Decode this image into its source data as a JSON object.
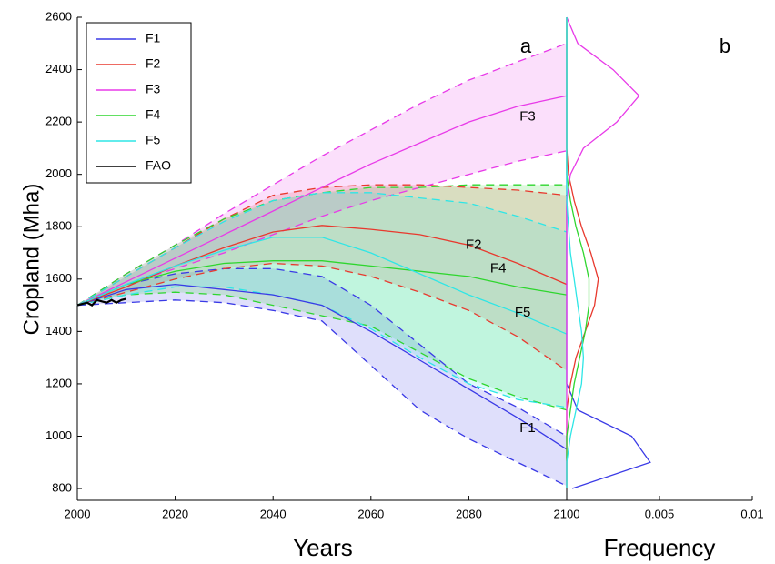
{
  "chart_data": {
    "type": "line",
    "x_label": "Years",
    "y_label": "Cropland (Mha)",
    "panels": [
      "a",
      "b"
    ],
    "x": [
      2000,
      2010,
      2020,
      2030,
      2040,
      2050,
      2060,
      2070,
      2080,
      2090,
      2100
    ],
    "xlim": [
      2000,
      2100
    ],
    "xticks": [
      2000,
      2020,
      2040,
      2060,
      2080,
      2100
    ],
    "ylim": [
      755,
      2600
    ],
    "yticks": [
      800,
      1000,
      1200,
      1400,
      1600,
      1800,
      2000,
      2200,
      2400,
      2600
    ],
    "series": [
      {
        "name": "F1",
        "color": "#3a3ae6",
        "values": [
          1500,
          1560,
          1580,
          1560,
          1540,
          1500,
          1400,
          1290,
          1180,
          1070,
          950
        ],
        "upper": [
          1500,
          1580,
          1620,
          1640,
          1640,
          1610,
          1500,
          1350,
          1200,
          1110,
          1000
        ],
        "lower": [
          1500,
          1510,
          1520,
          1510,
          1480,
          1440,
          1270,
          1100,
          990,
          900,
          810
        ],
        "density": [
          0.0003,
          0.0045,
          0.0035,
          0.0006,
          0,
          0,
          0,
          0,
          0,
          0,
          0,
          0,
          0,
          0,
          0,
          0,
          0,
          0,
          0
        ]
      },
      {
        "name": "F2",
        "color": "#e8392e",
        "values": [
          1500,
          1570,
          1650,
          1720,
          1780,
          1805,
          1790,
          1770,
          1730,
          1660,
          1580
        ],
        "upper": [
          1500,
          1610,
          1720,
          1830,
          1920,
          1950,
          1960,
          1960,
          1950,
          1940,
          1920
        ],
        "lower": [
          1500,
          1550,
          1600,
          1640,
          1660,
          1650,
          1610,
          1550,
          1480,
          1380,
          1250
        ],
        "density": [
          0,
          0,
          0,
          0,
          0.0002,
          0.0005,
          0.001,
          0.0015,
          0.0017,
          0.0013,
          0.0008,
          0.0004,
          0.0001,
          0,
          0,
          0,
          0,
          0,
          0
        ]
      },
      {
        "name": "F3",
        "color": "#e83ae8",
        "values": [
          1500,
          1590,
          1680,
          1770,
          1860,
          1950,
          2040,
          2120,
          2200,
          2260,
          2300
        ],
        "upper": [
          1500,
          1620,
          1730,
          1850,
          1960,
          2070,
          2170,
          2270,
          2360,
          2430,
          2500
        ],
        "lower": [
          1500,
          1580,
          1640,
          1700,
          1770,
          1840,
          1900,
          1950,
          2000,
          2050,
          2090
        ],
        "density": [
          0,
          0,
          0,
          0,
          0,
          0,
          0,
          0,
          0,
          0,
          0,
          0,
          0.0002,
          0.0009,
          0.0027,
          0.0039,
          0.0025,
          0.0006,
          0
        ]
      },
      {
        "name": "F4",
        "color": "#2ed62e",
        "values": [
          1500,
          1580,
          1630,
          1660,
          1670,
          1670,
          1650,
          1630,
          1610,
          1570,
          1540
        ],
        "upper": [
          1500,
          1620,
          1730,
          1830,
          1900,
          1930,
          1950,
          1950,
          1960,
          1960,
          1960
        ],
        "lower": [
          1500,
          1540,
          1550,
          1540,
          1500,
          1460,
          1420,
          1320,
          1220,
          1150,
          1100
        ],
        "density": [
          0,
          0,
          0,
          0.0002,
          0.0004,
          0.0007,
          0.001,
          0.0012,
          0.0012,
          0.0009,
          0.0005,
          0.0002,
          0,
          0,
          0,
          0,
          0,
          0,
          0
        ]
      },
      {
        "name": "F5",
        "color": "#2ee6e6",
        "values": [
          1500,
          1580,
          1650,
          1710,
          1760,
          1760,
          1700,
          1620,
          1540,
          1470,
          1390
        ],
        "upper": [
          1500,
          1610,
          1720,
          1820,
          1900,
          1930,
          1930,
          1910,
          1890,
          1840,
          1780
        ],
        "lower": [
          1500,
          1540,
          1570,
          1570,
          1540,
          1500,
          1410,
          1300,
          1200,
          1140,
          1110
        ],
        "density": [
          0,
          0,
          0.0002,
          0.0005,
          0.0008,
          0.0009,
          0.0008,
          0.0006,
          0.0004,
          0.0002,
          0.0001,
          0,
          0,
          0,
          0,
          0,
          0,
          0,
          0
        ]
      },
      {
        "name": "FAO",
        "color": "#000000",
        "x": [
          2000,
          2001,
          2002,
          2003,
          2004,
          2005,
          2006,
          2007,
          2008,
          2009,
          2010
        ],
        "values": [
          1500,
          1505,
          1510,
          1500,
          1520,
          1515,
          1510,
          1520,
          1510,
          1520,
          1525
        ]
      }
    ],
    "annotations": [
      {
        "text": "F1",
        "x": 2092,
        "y": 1030
      },
      {
        "text": "F2",
        "x": 2081,
        "y": 1730
      },
      {
        "text": "F3",
        "x": 2092,
        "y": 2220
      },
      {
        "text": "F4",
        "x": 2086,
        "y": 1640
      },
      {
        "text": "F5",
        "x": 2091,
        "y": 1470
      }
    ],
    "frequency": {
      "x_label": "Frequency",
      "xlim": [
        0,
        0.01
      ],
      "xticks": [
        0.005,
        0.01
      ],
      "y": [
        800,
        900,
        1000,
        1100,
        1200,
        1300,
        1400,
        1500,
        1600,
        1700,
        1800,
        1900,
        2000,
        2100,
        2200,
        2300,
        2400,
        2500,
        2600
      ]
    }
  }
}
